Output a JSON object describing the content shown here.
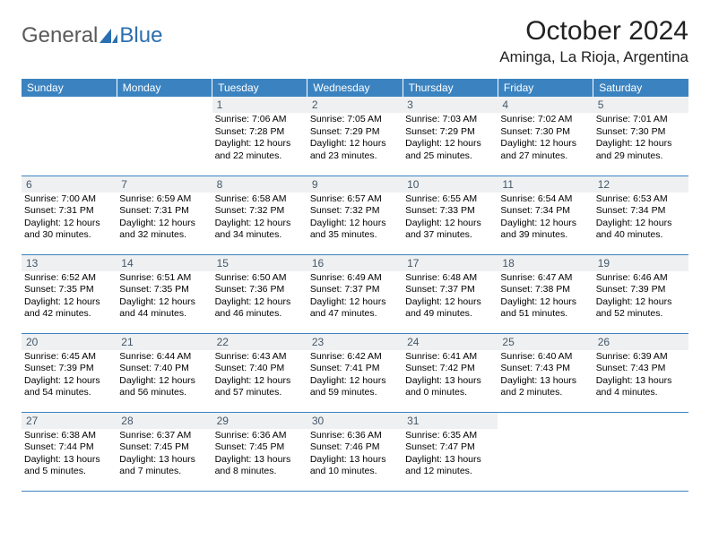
{
  "brand": {
    "part1": "General",
    "part2": "Blue"
  },
  "title": "October 2024",
  "location": "Aminga, La Rioja, Argentina",
  "headers": [
    "Sunday",
    "Monday",
    "Tuesday",
    "Wednesday",
    "Thursday",
    "Friday",
    "Saturday"
  ],
  "header_bg": "#3b83c0",
  "daybar_bg": "#eef0f1",
  "weeks": [
    [
      null,
      null,
      {
        "n": "1",
        "sr": "7:06 AM",
        "ss": "7:28 PM",
        "dl": "12 hours and 22 minutes."
      },
      {
        "n": "2",
        "sr": "7:05 AM",
        "ss": "7:29 PM",
        "dl": "12 hours and 23 minutes."
      },
      {
        "n": "3",
        "sr": "7:03 AM",
        "ss": "7:29 PM",
        "dl": "12 hours and 25 minutes."
      },
      {
        "n": "4",
        "sr": "7:02 AM",
        "ss": "7:30 PM",
        "dl": "12 hours and 27 minutes."
      },
      {
        "n": "5",
        "sr": "7:01 AM",
        "ss": "7:30 PM",
        "dl": "12 hours and 29 minutes."
      }
    ],
    [
      {
        "n": "6",
        "sr": "7:00 AM",
        "ss": "7:31 PM",
        "dl": "12 hours and 30 minutes."
      },
      {
        "n": "7",
        "sr": "6:59 AM",
        "ss": "7:31 PM",
        "dl": "12 hours and 32 minutes."
      },
      {
        "n": "8",
        "sr": "6:58 AM",
        "ss": "7:32 PM",
        "dl": "12 hours and 34 minutes."
      },
      {
        "n": "9",
        "sr": "6:57 AM",
        "ss": "7:32 PM",
        "dl": "12 hours and 35 minutes."
      },
      {
        "n": "10",
        "sr": "6:55 AM",
        "ss": "7:33 PM",
        "dl": "12 hours and 37 minutes."
      },
      {
        "n": "11",
        "sr": "6:54 AM",
        "ss": "7:34 PM",
        "dl": "12 hours and 39 minutes."
      },
      {
        "n": "12",
        "sr": "6:53 AM",
        "ss": "7:34 PM",
        "dl": "12 hours and 40 minutes."
      }
    ],
    [
      {
        "n": "13",
        "sr": "6:52 AM",
        "ss": "7:35 PM",
        "dl": "12 hours and 42 minutes."
      },
      {
        "n": "14",
        "sr": "6:51 AM",
        "ss": "7:35 PM",
        "dl": "12 hours and 44 minutes."
      },
      {
        "n": "15",
        "sr": "6:50 AM",
        "ss": "7:36 PM",
        "dl": "12 hours and 46 minutes."
      },
      {
        "n": "16",
        "sr": "6:49 AM",
        "ss": "7:37 PM",
        "dl": "12 hours and 47 minutes."
      },
      {
        "n": "17",
        "sr": "6:48 AM",
        "ss": "7:37 PM",
        "dl": "12 hours and 49 minutes."
      },
      {
        "n": "18",
        "sr": "6:47 AM",
        "ss": "7:38 PM",
        "dl": "12 hours and 51 minutes."
      },
      {
        "n": "19",
        "sr": "6:46 AM",
        "ss": "7:39 PM",
        "dl": "12 hours and 52 minutes."
      }
    ],
    [
      {
        "n": "20",
        "sr": "6:45 AM",
        "ss": "7:39 PM",
        "dl": "12 hours and 54 minutes."
      },
      {
        "n": "21",
        "sr": "6:44 AM",
        "ss": "7:40 PM",
        "dl": "12 hours and 56 minutes."
      },
      {
        "n": "22",
        "sr": "6:43 AM",
        "ss": "7:40 PM",
        "dl": "12 hours and 57 minutes."
      },
      {
        "n": "23",
        "sr": "6:42 AM",
        "ss": "7:41 PM",
        "dl": "12 hours and 59 minutes."
      },
      {
        "n": "24",
        "sr": "6:41 AM",
        "ss": "7:42 PM",
        "dl": "13 hours and 0 minutes."
      },
      {
        "n": "25",
        "sr": "6:40 AM",
        "ss": "7:43 PM",
        "dl": "13 hours and 2 minutes."
      },
      {
        "n": "26",
        "sr": "6:39 AM",
        "ss": "7:43 PM",
        "dl": "13 hours and 4 minutes."
      }
    ],
    [
      {
        "n": "27",
        "sr": "6:38 AM",
        "ss": "7:44 PM",
        "dl": "13 hours and 5 minutes."
      },
      {
        "n": "28",
        "sr": "6:37 AM",
        "ss": "7:45 PM",
        "dl": "13 hours and 7 minutes."
      },
      {
        "n": "29",
        "sr": "6:36 AM",
        "ss": "7:45 PM",
        "dl": "13 hours and 8 minutes."
      },
      {
        "n": "30",
        "sr": "6:36 AM",
        "ss": "7:46 PM",
        "dl": "13 hours and 10 minutes."
      },
      {
        "n": "31",
        "sr": "6:35 AM",
        "ss": "7:47 PM",
        "dl": "13 hours and 12 minutes."
      },
      null,
      null
    ]
  ],
  "labels": {
    "sunrise": "Sunrise: ",
    "sunset": "Sunset: ",
    "daylight": "Daylight: "
  }
}
